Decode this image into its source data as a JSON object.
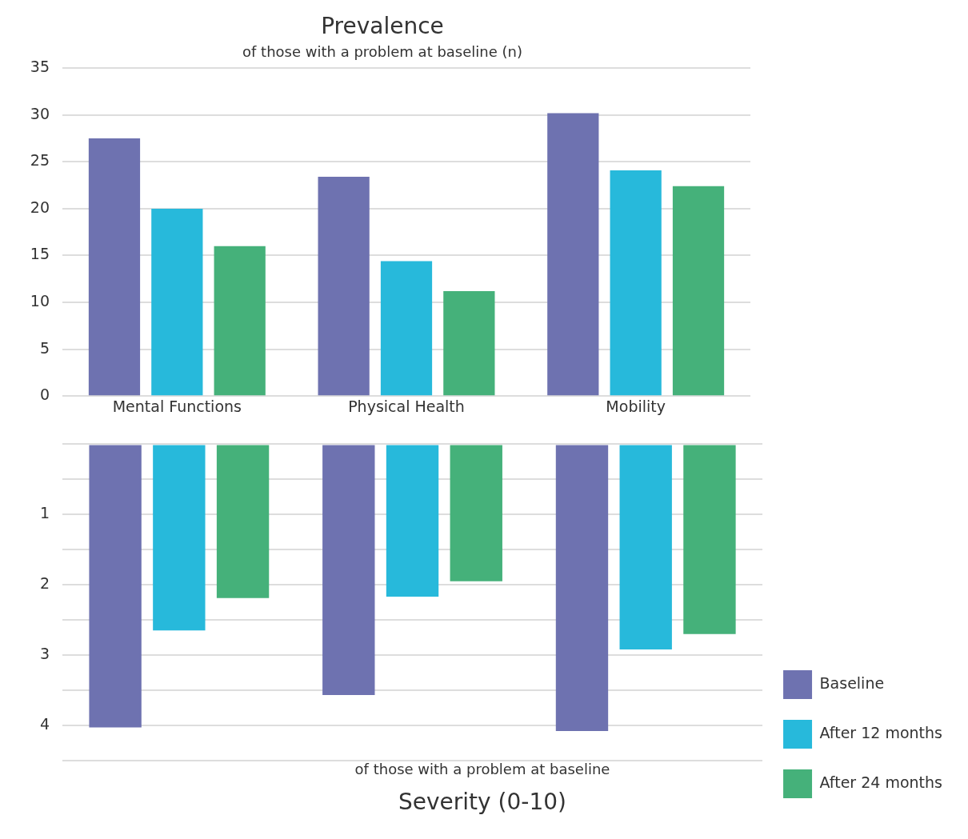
{
  "chart_data": [
    {
      "type": "bar",
      "title": "Prevalence",
      "subtitle": "of those with a problem at baseline (n)",
      "categories": [
        "Mental Functions",
        "Physical Health",
        "Mobility"
      ],
      "series": [
        {
          "color": "#6e72b0",
          "values": [
            27.5,
            23.4,
            30.2
          ]
        },
        {
          "color": "#27b9db",
          "values": [
            20.0,
            14.4,
            24.1
          ]
        },
        {
          "color": "#45b17a",
          "values": [
            16.0,
            11.2,
            22.4
          ]
        }
      ],
      "ylim": [
        0,
        35
      ],
      "yticks": [
        0,
        5,
        10,
        15,
        20,
        25,
        30,
        35
      ],
      "grid": "y",
      "legend": false
    },
    {
      "type": "bar",
      "title": "Severity (0-10)",
      "subtitle": "of those with a problem at baseline",
      "categories": [
        null,
        null,
        null
      ],
      "series": [
        {
          "name": "Baseline",
          "color": "#6e72b0",
          "values": [
            4.03,
            3.57,
            4.08
          ]
        },
        {
          "name": "After 12 months",
          "color": "#27b9db",
          "values": [
            2.65,
            2.17,
            2.92
          ]
        },
        {
          "name": "After 24 months",
          "color": "#45b17a",
          "values": [
            2.19,
            1.95,
            2.7
          ]
        }
      ],
      "ylim": [
        4.5,
        0
      ],
      "yticks": [
        {
          "value": 0,
          "label": null
        },
        {
          "value": 0.5,
          "label": null
        },
        1,
        {
          "value": 1.5,
          "label": null
        },
        2,
        {
          "value": 2.5,
          "label": null
        },
        3,
        {
          "value": 3.5,
          "label": null
        },
        4,
        {
          "value": 4.5,
          "label": null
        }
      ],
      "grid": "y",
      "legend": "right",
      "tick_labels": "y"
    }
  ]
}
